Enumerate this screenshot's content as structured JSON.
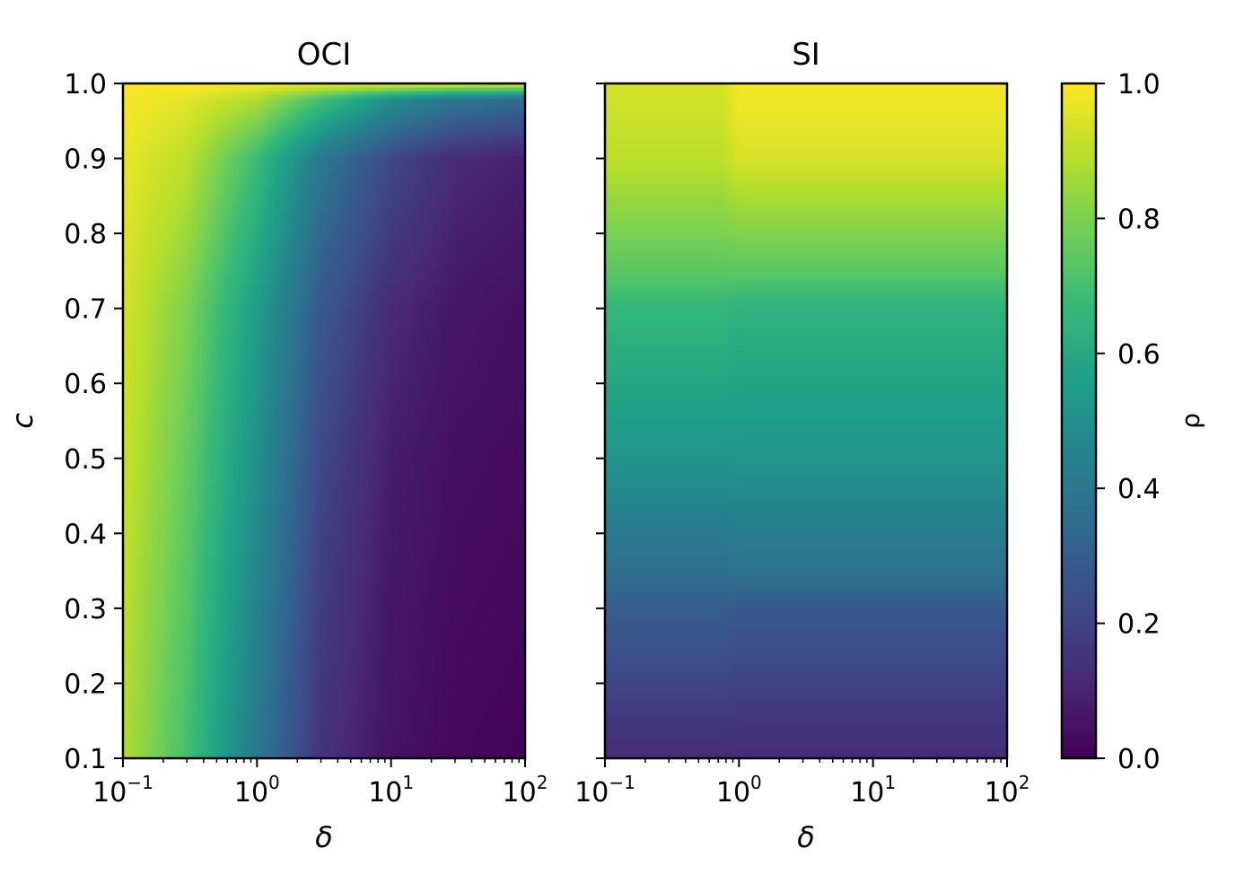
{
  "chart_data": [
    {
      "type": "heatmap",
      "title": "OCI",
      "xlabel": "δ",
      "ylabel": "c",
      "xscale": "log",
      "xlim": [
        0.1,
        100
      ],
      "ylim": [
        0.1,
        1.0
      ],
      "x_ticks": [
        {
          "base": "10",
          "exp": "−1"
        },
        {
          "base": "10",
          "exp": "0"
        },
        {
          "base": "10",
          "exp": "1"
        },
        {
          "base": "10",
          "exp": "2"
        }
      ],
      "y_ticks": [
        "0.1",
        "0.2",
        "0.3",
        "0.4",
        "0.5",
        "0.6",
        "0.7",
        "0.8",
        "0.9",
        "1.0"
      ],
      "x": [
        0.1,
        0.3,
        1,
        3,
        10,
        30,
        100
      ],
      "y": [
        0.1,
        0.3,
        0.5,
        0.7,
        0.9,
        0.98,
        1.0
      ],
      "z": [
        [
          0.88,
          0.7,
          0.4,
          0.15,
          0.05,
          0.02,
          0.01
        ],
        [
          0.9,
          0.73,
          0.45,
          0.18,
          0.06,
          0.03,
          0.02
        ],
        [
          0.92,
          0.76,
          0.5,
          0.22,
          0.08,
          0.04,
          0.03
        ],
        [
          0.94,
          0.8,
          0.55,
          0.28,
          0.12,
          0.06,
          0.04
        ],
        [
          0.97,
          0.9,
          0.68,
          0.4,
          0.22,
          0.12,
          0.09
        ],
        [
          0.99,
          0.96,
          0.88,
          0.7,
          0.5,
          0.4,
          0.35
        ],
        [
          1.0,
          1.0,
          0.99,
          0.98,
          0.97,
          0.96,
          0.95
        ]
      ],
      "colormap": "viridis",
      "grid": false
    },
    {
      "type": "heatmap",
      "title": "SI",
      "xlabel": "δ",
      "ylabel": "",
      "xscale": "log",
      "xlim": [
        0.1,
        100
      ],
      "ylim": [
        0.1,
        1.0
      ],
      "x_ticks": [
        {
          "base": "10",
          "exp": "−1"
        },
        {
          "base": "10",
          "exp": "0"
        },
        {
          "base": "10",
          "exp": "1"
        },
        {
          "base": "10",
          "exp": "2"
        }
      ],
      "y_ticks": [],
      "x": [
        0.1,
        0.75,
        1,
        100
      ],
      "y": [
        0.1,
        0.3,
        0.35,
        0.5,
        0.7,
        0.75,
        0.9,
        1.0
      ],
      "z": [
        [
          0.12,
          0.12,
          0.12,
          0.12
        ],
        [
          0.3,
          0.3,
          0.28,
          0.28
        ],
        [
          0.36,
          0.36,
          0.38,
          0.38
        ],
        [
          0.52,
          0.52,
          0.52,
          0.52
        ],
        [
          0.66,
          0.66,
          0.64,
          0.64
        ],
        [
          0.74,
          0.74,
          0.74,
          0.74
        ],
        [
          0.9,
          0.9,
          0.94,
          0.94
        ],
        [
          0.94,
          0.94,
          0.99,
          0.99
        ]
      ],
      "colormap": "viridis",
      "grid": false
    },
    {
      "type": "colorbar",
      "label": "ρ",
      "range": [
        0.0,
        1.0
      ],
      "ticks": [
        "0.0",
        "0.2",
        "0.4",
        "0.6",
        "0.8",
        "1.0"
      ],
      "colormap": "viridis"
    }
  ],
  "colormap_stops": [
    "#440154",
    "#482878",
    "#3e4989",
    "#31688e",
    "#26828e",
    "#1f9e89",
    "#35b779",
    "#6ece58",
    "#b5de2b",
    "#fde725"
  ]
}
